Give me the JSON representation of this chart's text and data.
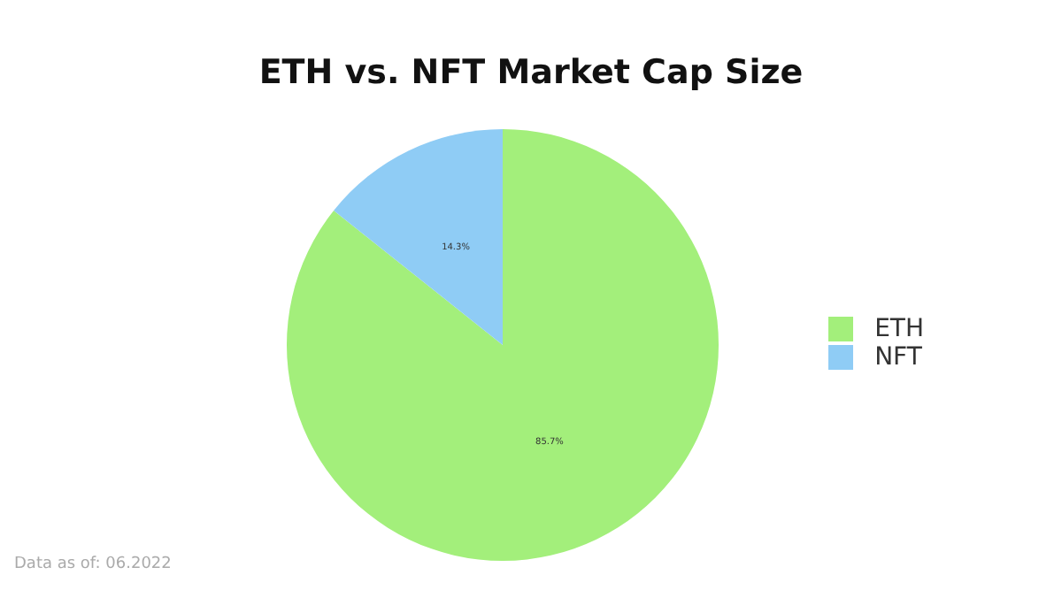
{
  "chart_data": {
    "type": "pie",
    "title": "ETH vs. NFT Market Cap Size",
    "categories": [
      "ETH",
      "NFT"
    ],
    "values": [
      85.7,
      14.3
    ],
    "colors": [
      "#a3ef7b",
      "#8fccf5"
    ],
    "value_labels": [
      "85.7%",
      "14.3%"
    ],
    "legend": "right",
    "annotations": [
      "Data as of: 06.2022"
    ]
  }
}
